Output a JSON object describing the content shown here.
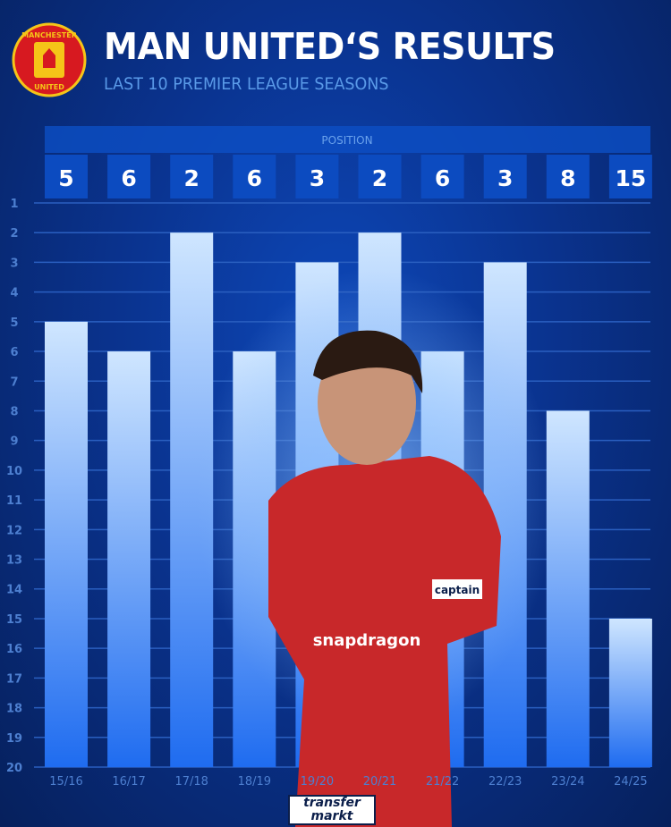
{
  "header": {
    "title": "MAN UNITED‘S RESULTS",
    "subtitle": "LAST 10 PREMIER LEAGUE SEASONS",
    "logo_text": [
      "MANCHESTER",
      "UNITED"
    ]
  },
  "chart_data": {
    "type": "bar",
    "title": "MAN UNITED‘S RESULTS",
    "subtitle": "LAST 10 PREMIER LEAGUE SEASONS",
    "table_header": "POSITION",
    "categories": [
      "15/16",
      "16/17",
      "17/18",
      "18/19",
      "19/20",
      "20/21",
      "21/22",
      "22/23",
      "23/24",
      "24/25"
    ],
    "values": [
      5,
      6,
      2,
      6,
      3,
      2,
      6,
      3,
      8,
      15
    ],
    "ylim": [
      1,
      20
    ],
    "y_inverted": true,
    "yticks": [
      1,
      2,
      3,
      4,
      5,
      6,
      7,
      8,
      9,
      10,
      11,
      12,
      13,
      14,
      15,
      16,
      17,
      18,
      19,
      20
    ],
    "grid": true,
    "colors": {
      "bar_top": "#cfe6ff",
      "bar_bottom": "#1f6cf0",
      "background": "#0a338f",
      "label": "#4d7fd0"
    }
  },
  "watermark": {
    "brand": "transfer markt"
  },
  "photo": {
    "sponsor": "snapdragon",
    "armband": "captain"
  }
}
